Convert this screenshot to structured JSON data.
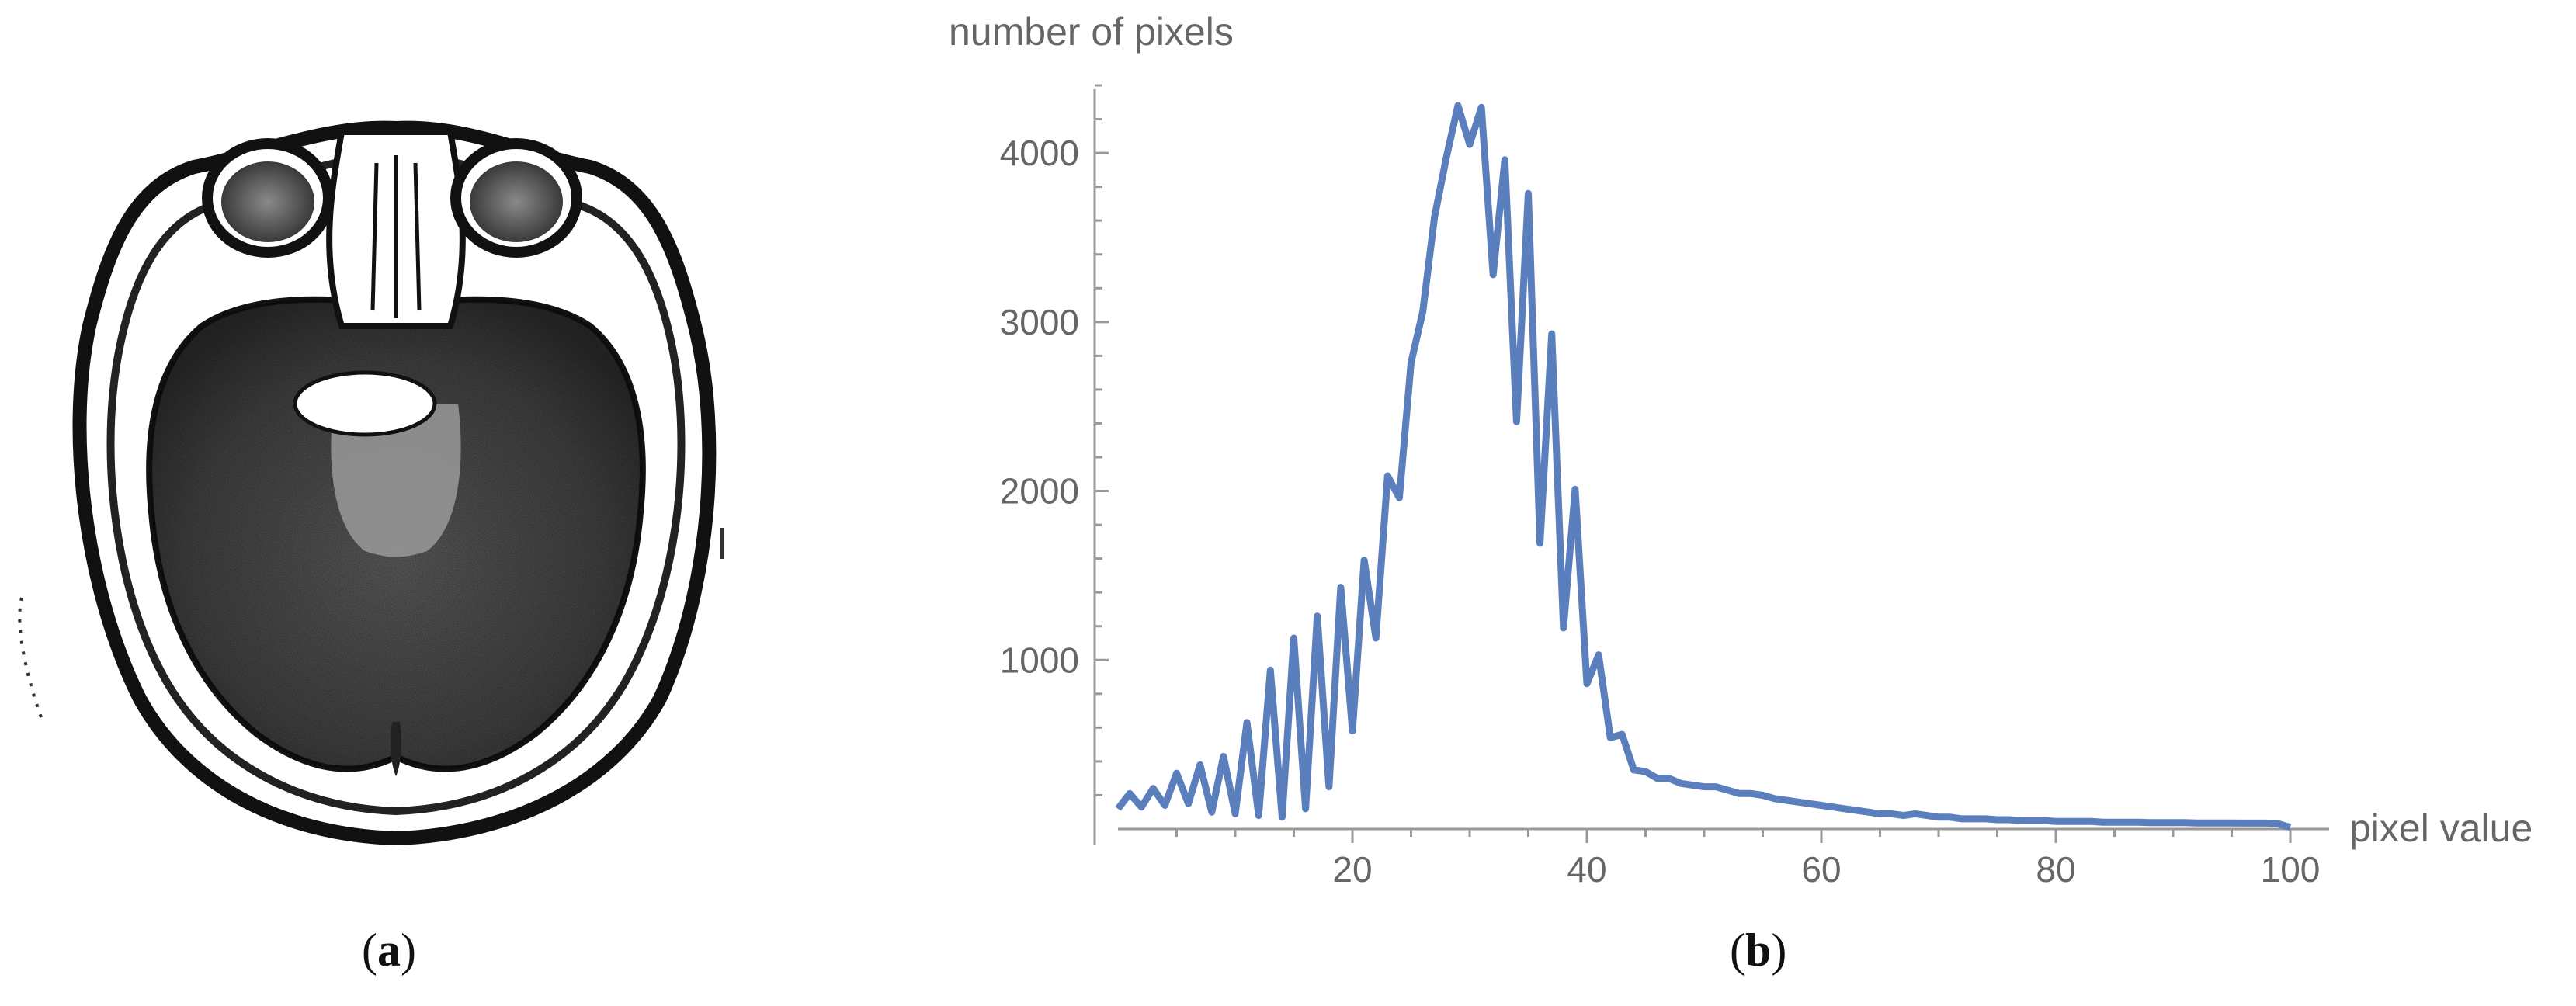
{
  "panels": {
    "a": {
      "caption_open": "(",
      "caption_letter": "a",
      "caption_close": ")"
    },
    "b": {
      "caption_open": "(",
      "caption_letter": "b",
      "caption_close": ")"
    }
  },
  "chart_data": {
    "type": "line",
    "title": "",
    "xlabel": "pixel value",
    "ylabel": "number of pixels",
    "xlim": [
      0,
      100
    ],
    "ylim": [
      0,
      4400
    ],
    "x_ticks": [
      20,
      40,
      60,
      80,
      100
    ],
    "y_ticks": [
      1000,
      2000,
      3000,
      4000
    ],
    "grid": false,
    "line_color": "#5b7fbd",
    "series": [
      {
        "x": [
          0,
          1,
          2,
          3,
          4,
          5,
          6,
          7,
          8,
          9,
          10,
          11,
          12,
          13,
          14,
          15,
          16,
          17,
          18,
          19,
          20,
          21,
          22,
          23,
          24,
          25,
          26,
          27,
          28,
          29,
          30,
          31,
          32,
          33,
          34,
          35,
          36,
          37,
          38,
          39,
          40,
          41,
          42,
          43,
          44,
          45,
          46,
          47,
          48,
          49,
          50,
          51,
          52,
          53,
          54,
          55,
          56,
          57,
          58,
          59,
          60,
          61,
          62,
          63,
          64,
          65,
          66,
          67,
          68,
          69,
          70,
          71,
          72,
          73,
          74,
          75,
          76,
          77,
          78,
          79,
          80,
          81,
          82,
          83,
          84,
          85,
          86,
          87,
          88,
          89,
          90,
          91,
          92,
          93,
          94,
          95,
          96,
          97,
          98,
          99,
          100
        ],
        "y": [
          120,
          210,
          130,
          240,
          140,
          330,
          150,
          380,
          100,
          430,
          90,
          630,
          80,
          940,
          70,
          1130,
          120,
          1260,
          250,
          1430,
          580,
          1590,
          1130,
          2090,
          1960,
          2760,
          3060,
          3620,
          3970,
          4280,
          4050,
          4270,
          3280,
          3960,
          2410,
          3760,
          1690,
          2930,
          1190,
          2010,
          860,
          1030,
          540,
          560,
          350,
          340,
          300,
          300,
          270,
          260,
          250,
          250,
          230,
          210,
          210,
          200,
          180,
          170,
          160,
          150,
          140,
          130,
          120,
          110,
          100,
          90,
          90,
          80,
          90,
          80,
          70,
          70,
          60,
          60,
          60,
          55,
          55,
          50,
          50,
          50,
          45,
          45,
          45,
          45,
          40,
          40,
          40,
          40,
          38,
          38,
          38,
          38,
          36,
          36,
          36,
          36,
          35,
          35,
          35,
          30,
          10
        ]
      }
    ]
  }
}
